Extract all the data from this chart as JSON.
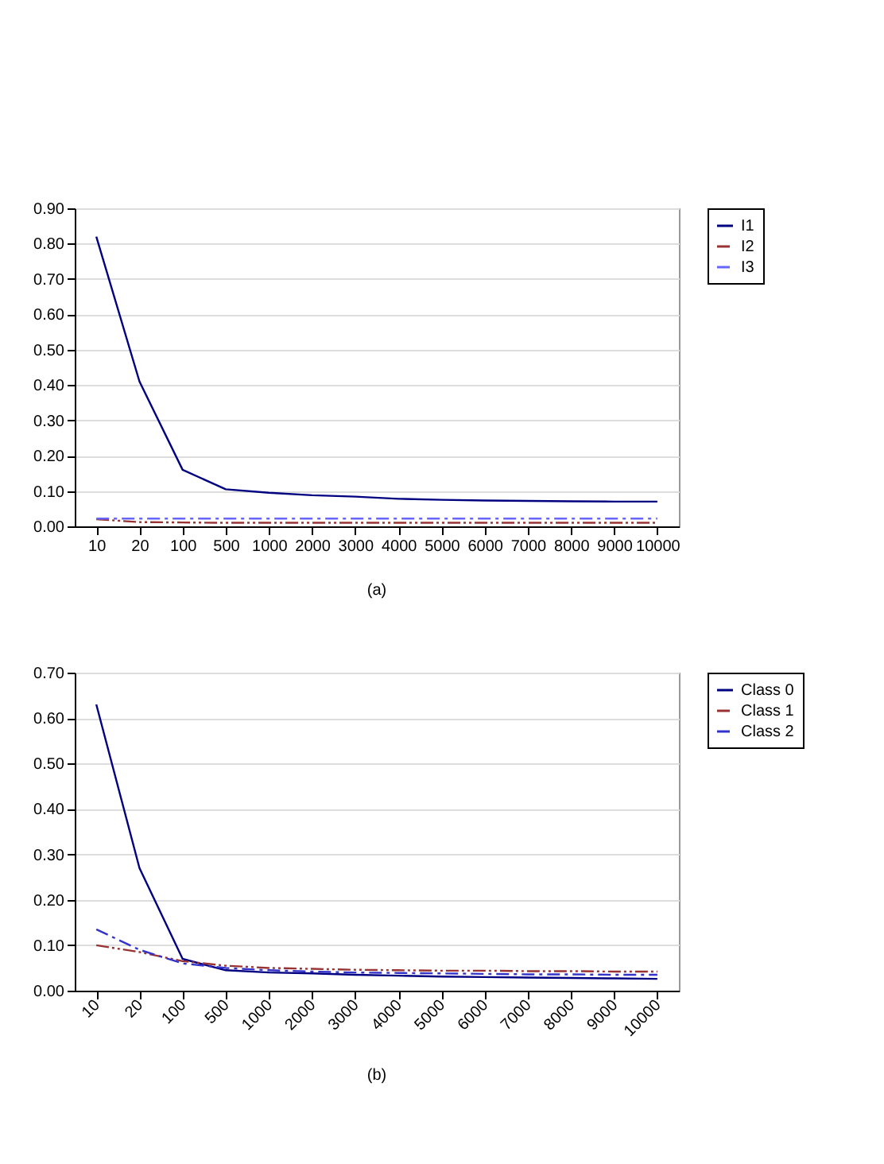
{
  "chart_data": [
    {
      "type": "line",
      "categories": [
        "10",
        "20",
        "100",
        "500",
        "1000",
        "2000",
        "3000",
        "4000",
        "5000",
        "6000",
        "7000",
        "8000",
        "9000",
        "10000"
      ],
      "series": [
        {
          "name": "I1",
          "color": "#000080",
          "line_style": "solid",
          "values": [
            0.82,
            0.41,
            0.16,
            0.105,
            0.095,
            0.088,
            0.084,
            0.078,
            0.075,
            0.073,
            0.072,
            0.071,
            0.07,
            0.07
          ]
        },
        {
          "name": "I2",
          "color": "#993333",
          "line_style": "dotted",
          "values": [
            0.02,
            0.012,
            0.011,
            0.01,
            0.01,
            0.01,
            0.01,
            0.01,
            0.01,
            0.01,
            0.01,
            0.01,
            0.01,
            0.01
          ]
        },
        {
          "name": "I3",
          "color": "#6666ff",
          "line_style": "dashed",
          "values": [
            0.022,
            0.022,
            0.022,
            0.022,
            0.022,
            0.022,
            0.022,
            0.022,
            0.022,
            0.022,
            0.022,
            0.022,
            0.022,
            0.022
          ]
        }
      ],
      "ylim": [
        0,
        0.9
      ],
      "yticks": [
        {
          "value": 0,
          "label": "0.00"
        },
        {
          "value": 0.1,
          "label": "0.10"
        },
        {
          "value": 0.2,
          "label": "0.20"
        },
        {
          "value": 0.3,
          "label": "0.30"
        },
        {
          "value": 0.4,
          "label": "0.40"
        },
        {
          "value": 0.5,
          "label": "0.50"
        },
        {
          "value": 0.6,
          "label": "0.60"
        },
        {
          "value": 0.7,
          "label": "0.70"
        },
        {
          "value": 0.8,
          "label": "0.80"
        },
        {
          "value": 0.9,
          "label": "0.90"
        }
      ],
      "grid": "y",
      "legend": "right",
      "annotations": [
        "(a)"
      ]
    },
    {
      "type": "line",
      "categories": [
        "10",
        "20",
        "100",
        "500",
        "1000",
        "2000",
        "3000",
        "4000",
        "5000",
        "6000",
        "7000",
        "8000",
        "9000",
        "10000"
      ],
      "series": [
        {
          "name": "Class 0",
          "color": "#000080",
          "line_style": "solid",
          "values": [
            0.63,
            0.27,
            0.07,
            0.045,
            0.04,
            0.038,
            0.035,
            0.033,
            0.031,
            0.03,
            0.029,
            0.028,
            0.027,
            0.026
          ]
        },
        {
          "name": "Class 1",
          "color": "#993333",
          "line_style": "dotted",
          "values": [
            0.1,
            0.085,
            0.065,
            0.055,
            0.05,
            0.048,
            0.046,
            0.045,
            0.044,
            0.044,
            0.043,
            0.043,
            0.042,
            0.042
          ]
        },
        {
          "name": "Class 2",
          "color": "#3333cc",
          "line_style": "dashed",
          "values": [
            0.135,
            0.09,
            0.06,
            0.05,
            0.045,
            0.042,
            0.04,
            0.039,
            0.038,
            0.037,
            0.036,
            0.036,
            0.035,
            0.035
          ]
        }
      ],
      "ylim": [
        0,
        0.7
      ],
      "yticks": [
        {
          "value": 0,
          "label": "0.00"
        },
        {
          "value": 0.1,
          "label": "0.10"
        },
        {
          "value": 0.2,
          "label": "0.20"
        },
        {
          "value": 0.3,
          "label": "0.30"
        },
        {
          "value": 0.4,
          "label": "0.40"
        },
        {
          "value": 0.5,
          "label": "0.50"
        },
        {
          "value": 0.6,
          "label": "0.60"
        },
        {
          "value": 0.7,
          "label": "0.70"
        }
      ],
      "grid": "y",
      "legend": "right",
      "annotations": [
        "(b)"
      ]
    }
  ]
}
